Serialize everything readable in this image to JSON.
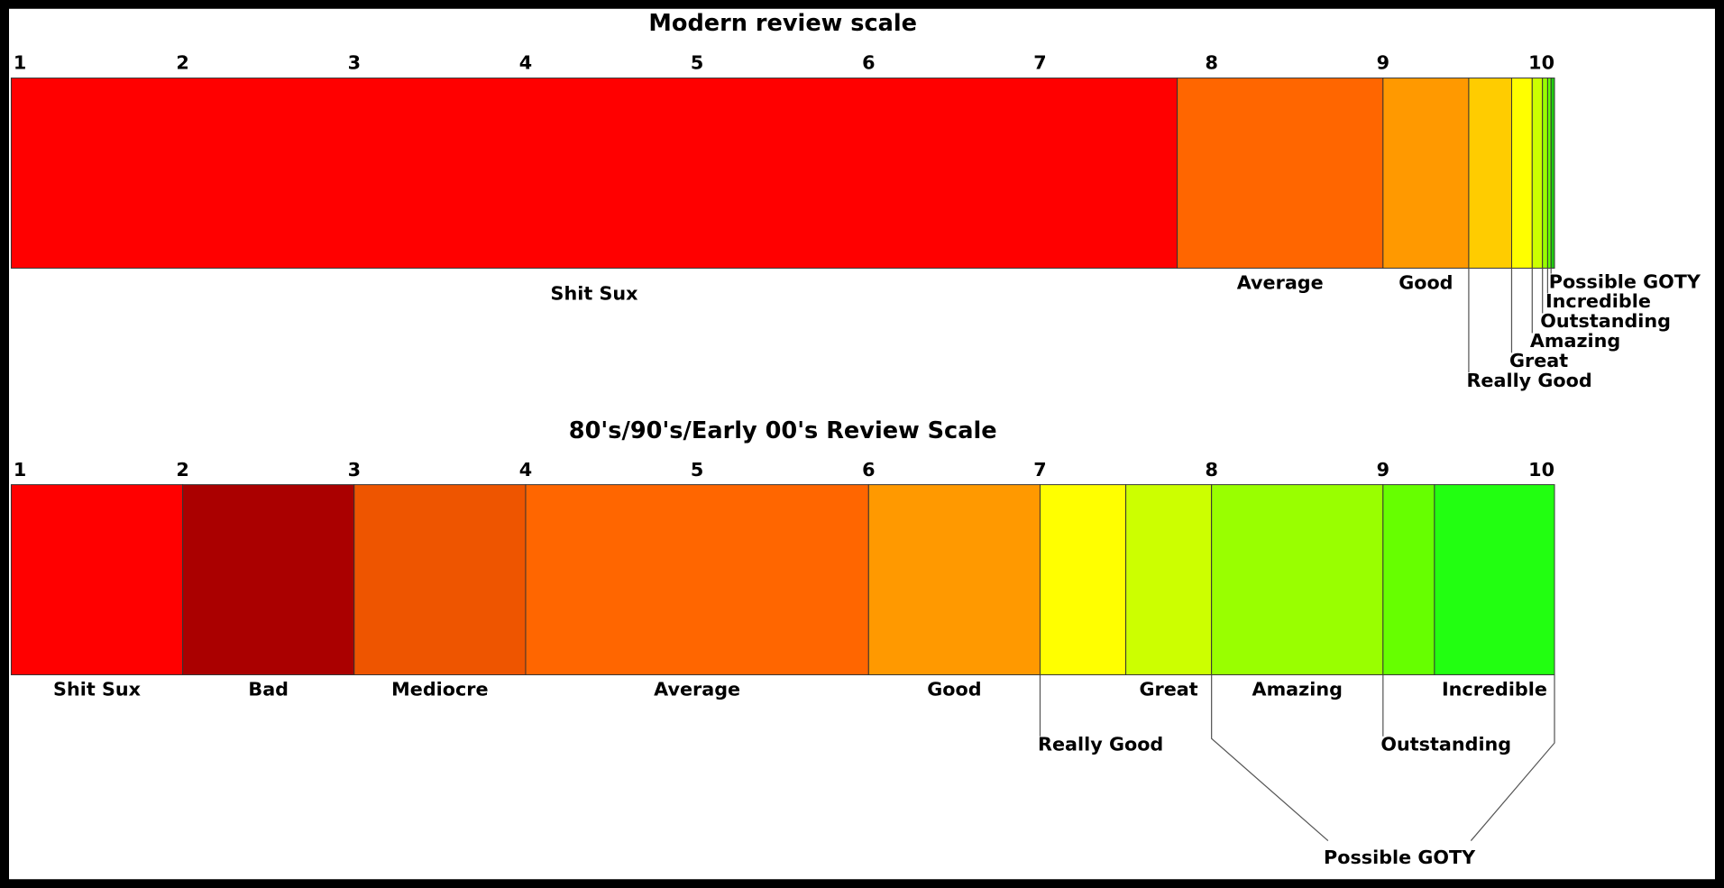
{
  "chart_data": [
    {
      "type": "scale",
      "title": "Modern review scale",
      "xlim": [
        1,
        10
      ],
      "xticks": [
        1,
        2,
        3,
        4,
        5,
        6,
        7,
        8,
        9,
        10
      ],
      "segments": [
        {
          "label": "Shit Sux",
          "color": "#ff0000",
          "range": [
            1,
            7.8
          ]
        },
        {
          "label": "Average",
          "color": "#ff6600",
          "range": [
            7.8,
            9
          ]
        },
        {
          "label": "Good",
          "color": "#ff9900",
          "range": [
            9,
            9.5
          ]
        },
        {
          "label": "Really Good",
          "color": "#ffcc00",
          "range": [
            9.5,
            9.75
          ]
        },
        {
          "label": "Great",
          "color": "#ffff00",
          "range": [
            9.75,
            9.87
          ]
        },
        {
          "label": "Amazing",
          "color": "#ccff00",
          "range": [
            9.87,
            9.93
          ]
        },
        {
          "label": "Outstanding",
          "color": "#99ff00",
          "range": [
            9.93,
            9.96
          ]
        },
        {
          "label": "Incredible",
          "color": "#66ff00",
          "range": [
            9.96,
            9.98
          ]
        },
        {
          "label": "Possible GOTY",
          "color": "#22cc11",
          "range": [
            9.98,
            10
          ]
        }
      ]
    },
    {
      "type": "scale",
      "title": "80's/90's/Early 00's Review Scale",
      "xlim": [
        1,
        10
      ],
      "xticks": [
        1,
        2,
        3,
        4,
        5,
        6,
        7,
        8,
        9,
        10
      ],
      "segments": [
        {
          "label": "Shit Sux",
          "color": "#ff0000",
          "range": [
            1,
            2
          ]
        },
        {
          "label": "Bad",
          "color": "#aa0000",
          "range": [
            2,
            3
          ]
        },
        {
          "label": "Mediocre",
          "color": "#ee5500",
          "range": [
            3,
            4
          ]
        },
        {
          "label": "Average",
          "color": "#ff6600",
          "range": [
            4,
            6
          ]
        },
        {
          "label": "Good",
          "color": "#ff9900",
          "range": [
            6,
            7
          ]
        },
        {
          "label": "Really Good",
          "color": "#ffff00",
          "range": [
            7,
            7.5
          ]
        },
        {
          "label": "Great",
          "color": "#ccff00",
          "range": [
            7.5,
            8
          ]
        },
        {
          "label": "Amazing",
          "color": "#99ff00",
          "range": [
            8,
            9
          ]
        },
        {
          "label": "Outstanding",
          "color": "#66ff00",
          "range": [
            9,
            9.3
          ]
        },
        {
          "label": "Incredible",
          "color": "#22ff11",
          "range": [
            9.3,
            10
          ]
        }
      ],
      "annotations": [
        {
          "text": "Possible GOTY",
          "range": [
            8,
            10
          ]
        }
      ]
    }
  ]
}
